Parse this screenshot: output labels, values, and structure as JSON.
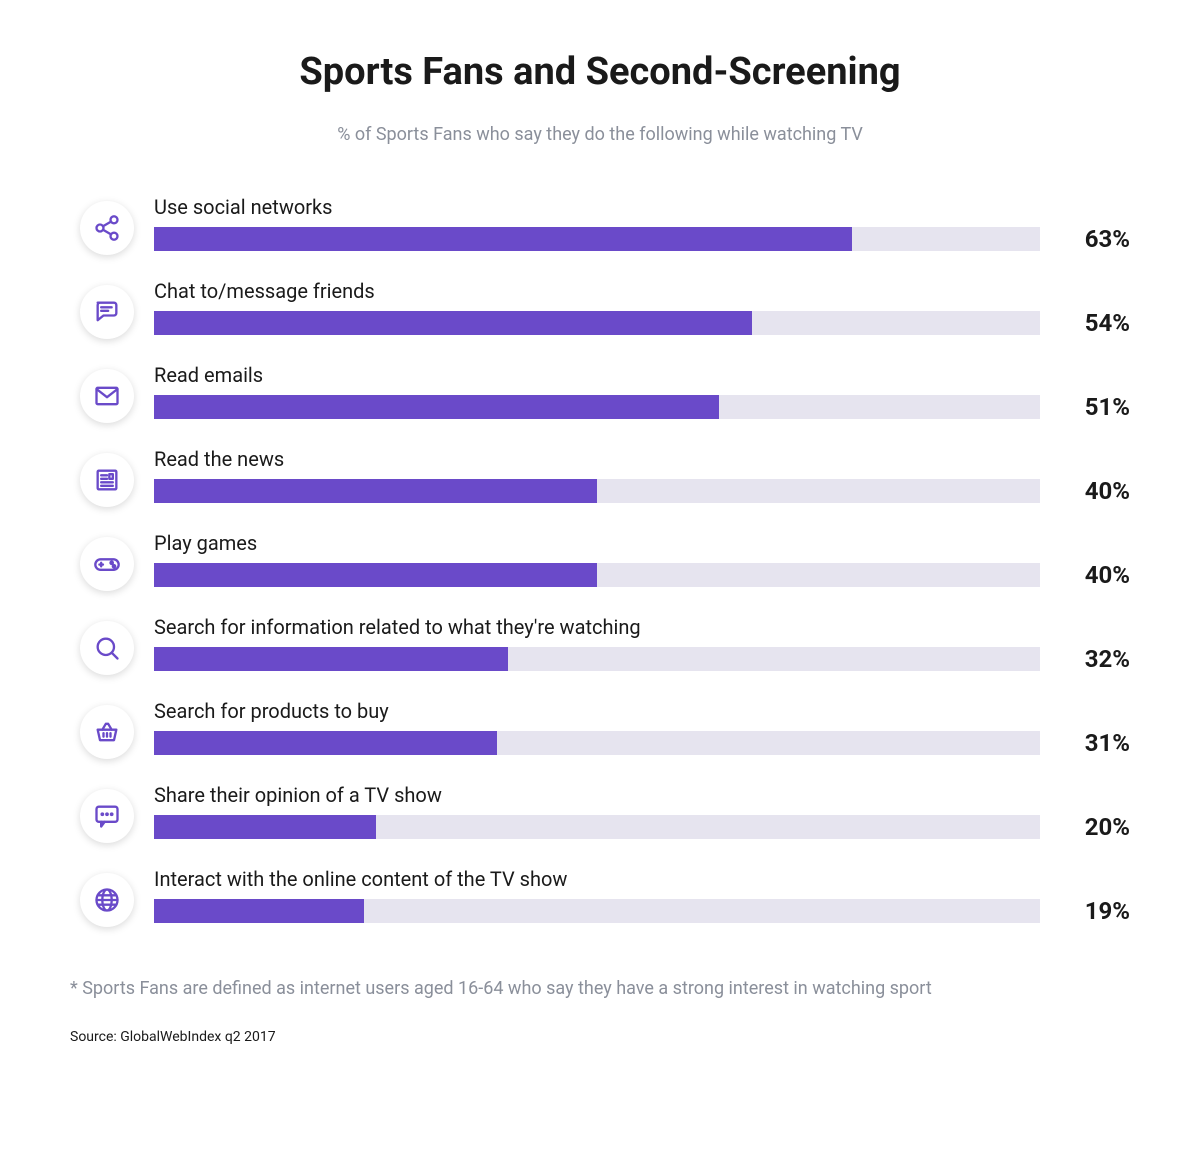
{
  "title": "Sports Fans and Second-Screening",
  "subtitle": "% of Sports Fans who say they do the following while watching TV",
  "bar_color": "#6a4ac9",
  "track_color": "#e6e4ef",
  "icon_color": "#6a4ac9",
  "xmax": 80,
  "items": [
    {
      "label": "Use social networks",
      "value": 63,
      "pct": "63%",
      "icon": "share"
    },
    {
      "label": "Chat to/message friends",
      "value": 54,
      "pct": "54%",
      "icon": "chat"
    },
    {
      "label": "Read emails",
      "value": 51,
      "pct": "51%",
      "icon": "mail"
    },
    {
      "label": "Read the news",
      "value": 40,
      "pct": "40%",
      "icon": "news"
    },
    {
      "label": "Play games",
      "value": 40,
      "pct": "40%",
      "icon": "gamepad"
    },
    {
      "label": "Search for information related to what they're watching",
      "value": 32,
      "pct": "32%",
      "icon": "search"
    },
    {
      "label": "Search for products to buy",
      "value": 31,
      "pct": "31%",
      "icon": "basket"
    },
    {
      "label": "Share their opinion of a TV show",
      "value": 20,
      "pct": "20%",
      "icon": "opinion"
    },
    {
      "label": "Interact with the online content of the TV show",
      "value": 19,
      "pct": "19%",
      "icon": "globe"
    }
  ],
  "footnote": "* Sports Fans are defined as internet users aged 16-64 who say they have a strong interest in watching sport",
  "source": "Source: GlobalWebIndex q2 2017"
}
